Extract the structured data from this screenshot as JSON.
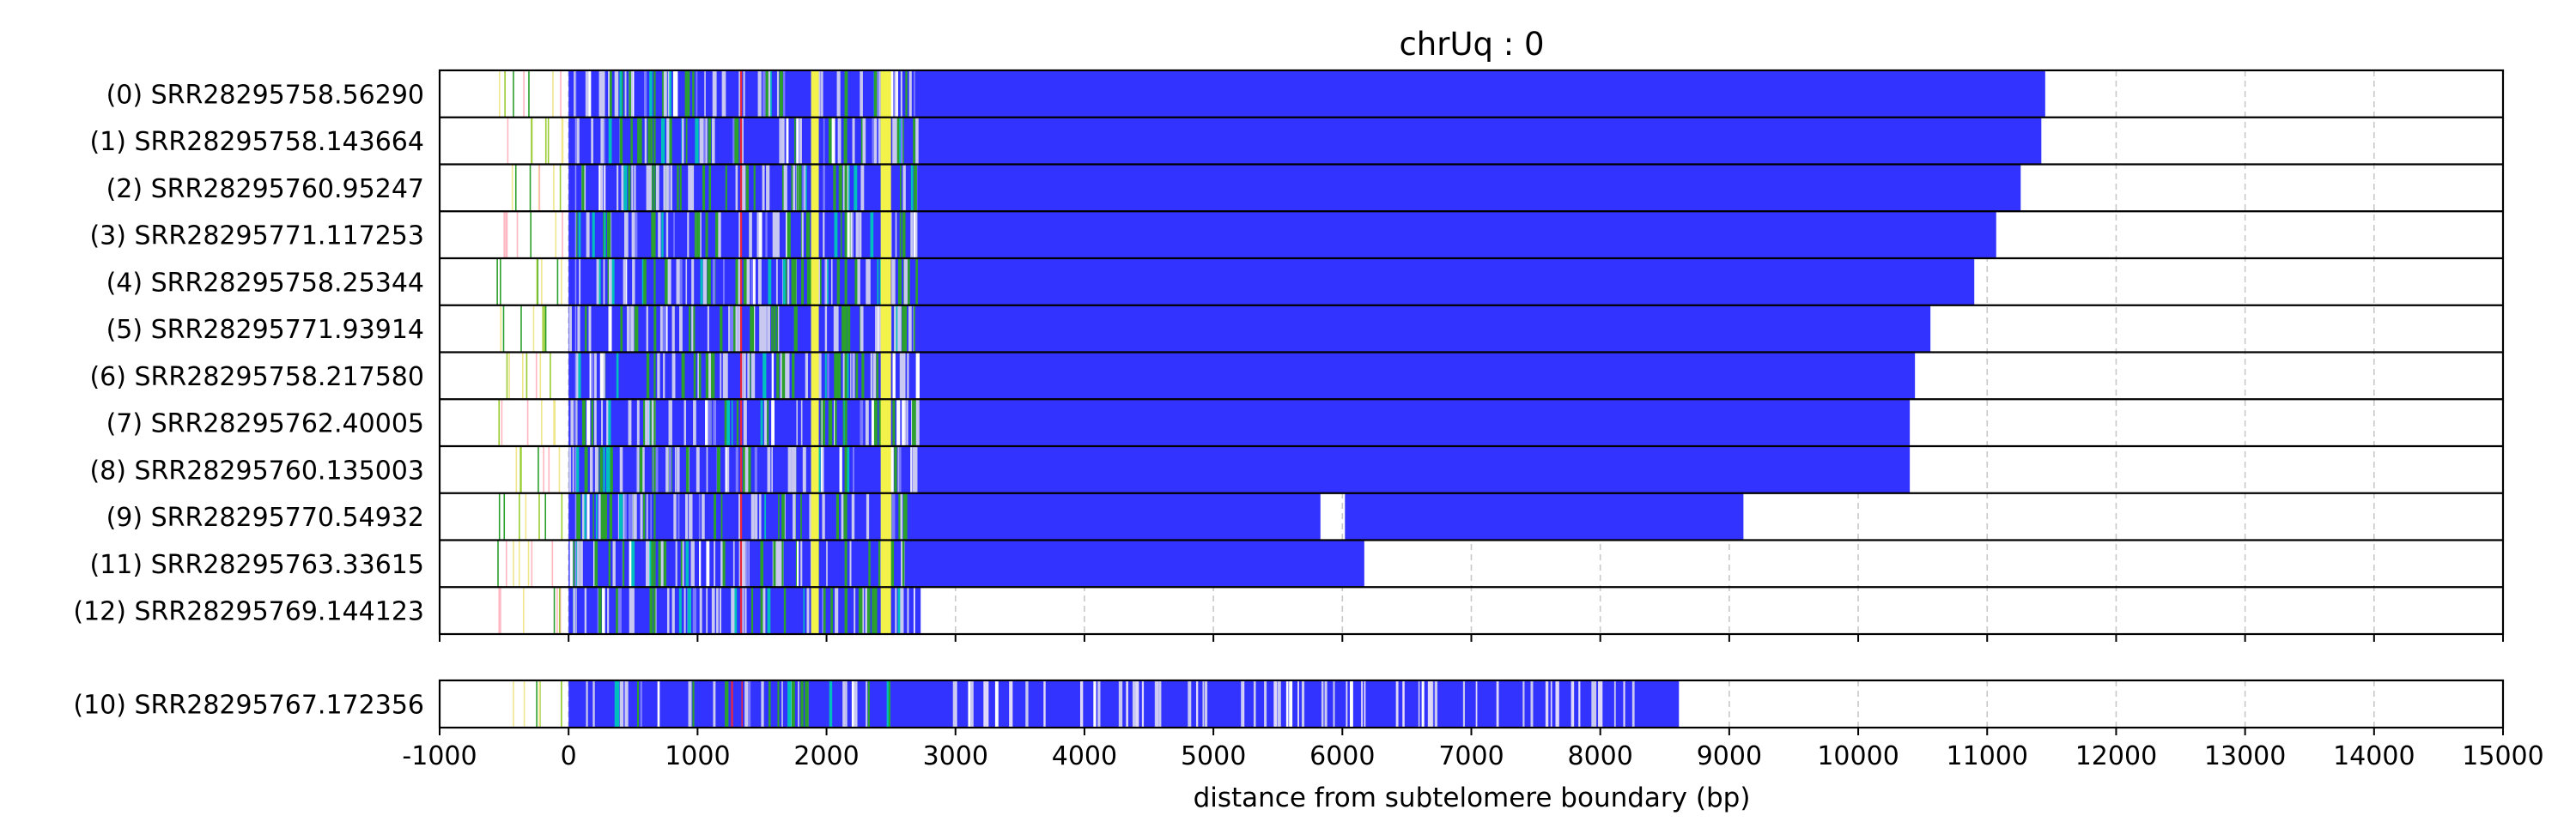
{
  "chart_data": {
    "type": "read-track",
    "title": "chrUq : 0",
    "xlabel": "distance from subtelomere boundary (bp)",
    "xlim": [
      -1000,
      15000
    ],
    "xticks": [
      -1000,
      0,
      1000,
      2000,
      3000,
      4000,
      5000,
      6000,
      7000,
      8000,
      9000,
      10000,
      11000,
      12000,
      13000,
      14000,
      15000
    ],
    "grid": "vertical dashed",
    "colors": {
      "repeat": "#3333ff",
      "green": "#2ca02c",
      "yellow": "#f2f24a",
      "red": "#e8283c",
      "cyan": "#00bfbf",
      "lavender": "#c8c8f0",
      "subtelomere_lines": [
        "#2ca02c",
        "#9acd32",
        "#f0e68c",
        "#ffb6c1"
      ]
    },
    "panels": [
      {
        "reads": [
          {
            "label": "(0) SRR28295758.56290",
            "end": 11450,
            "gaps": []
          },
          {
            "label": "(1) SRR28295758.143664",
            "end": 11420,
            "gaps": []
          },
          {
            "label": "(2) SRR28295760.95247",
            "end": 11260,
            "gaps": []
          },
          {
            "label": "(3) SRR28295771.117253",
            "end": 11070,
            "gaps": []
          },
          {
            "label": "(4) SRR28295758.25344",
            "end": 10900,
            "gaps": []
          },
          {
            "label": "(5) SRR28295771.93914",
            "end": 10560,
            "gaps": []
          },
          {
            "label": "(6) SRR28295758.217580",
            "end": 10440,
            "gaps": []
          },
          {
            "label": "(7) SRR28295762.40005",
            "end": 10400,
            "gaps": []
          },
          {
            "label": "(8) SRR28295760.135003",
            "end": 10400,
            "gaps": []
          },
          {
            "label": "(9) SRR28295770.54932",
            "end": 9110,
            "gaps": [
              [
                5830,
                6020
              ]
            ]
          },
          {
            "label": "(11) SRR28295763.33615",
            "end": 6170,
            "gaps": []
          },
          {
            "label": "(12) SRR28295769.144123",
            "end": 2730,
            "gaps": []
          }
        ]
      },
      {
        "reads": [
          {
            "label": "(10) SRR28295767.172356",
            "end": 8610,
            "gaps": []
          }
        ]
      }
    ]
  }
}
